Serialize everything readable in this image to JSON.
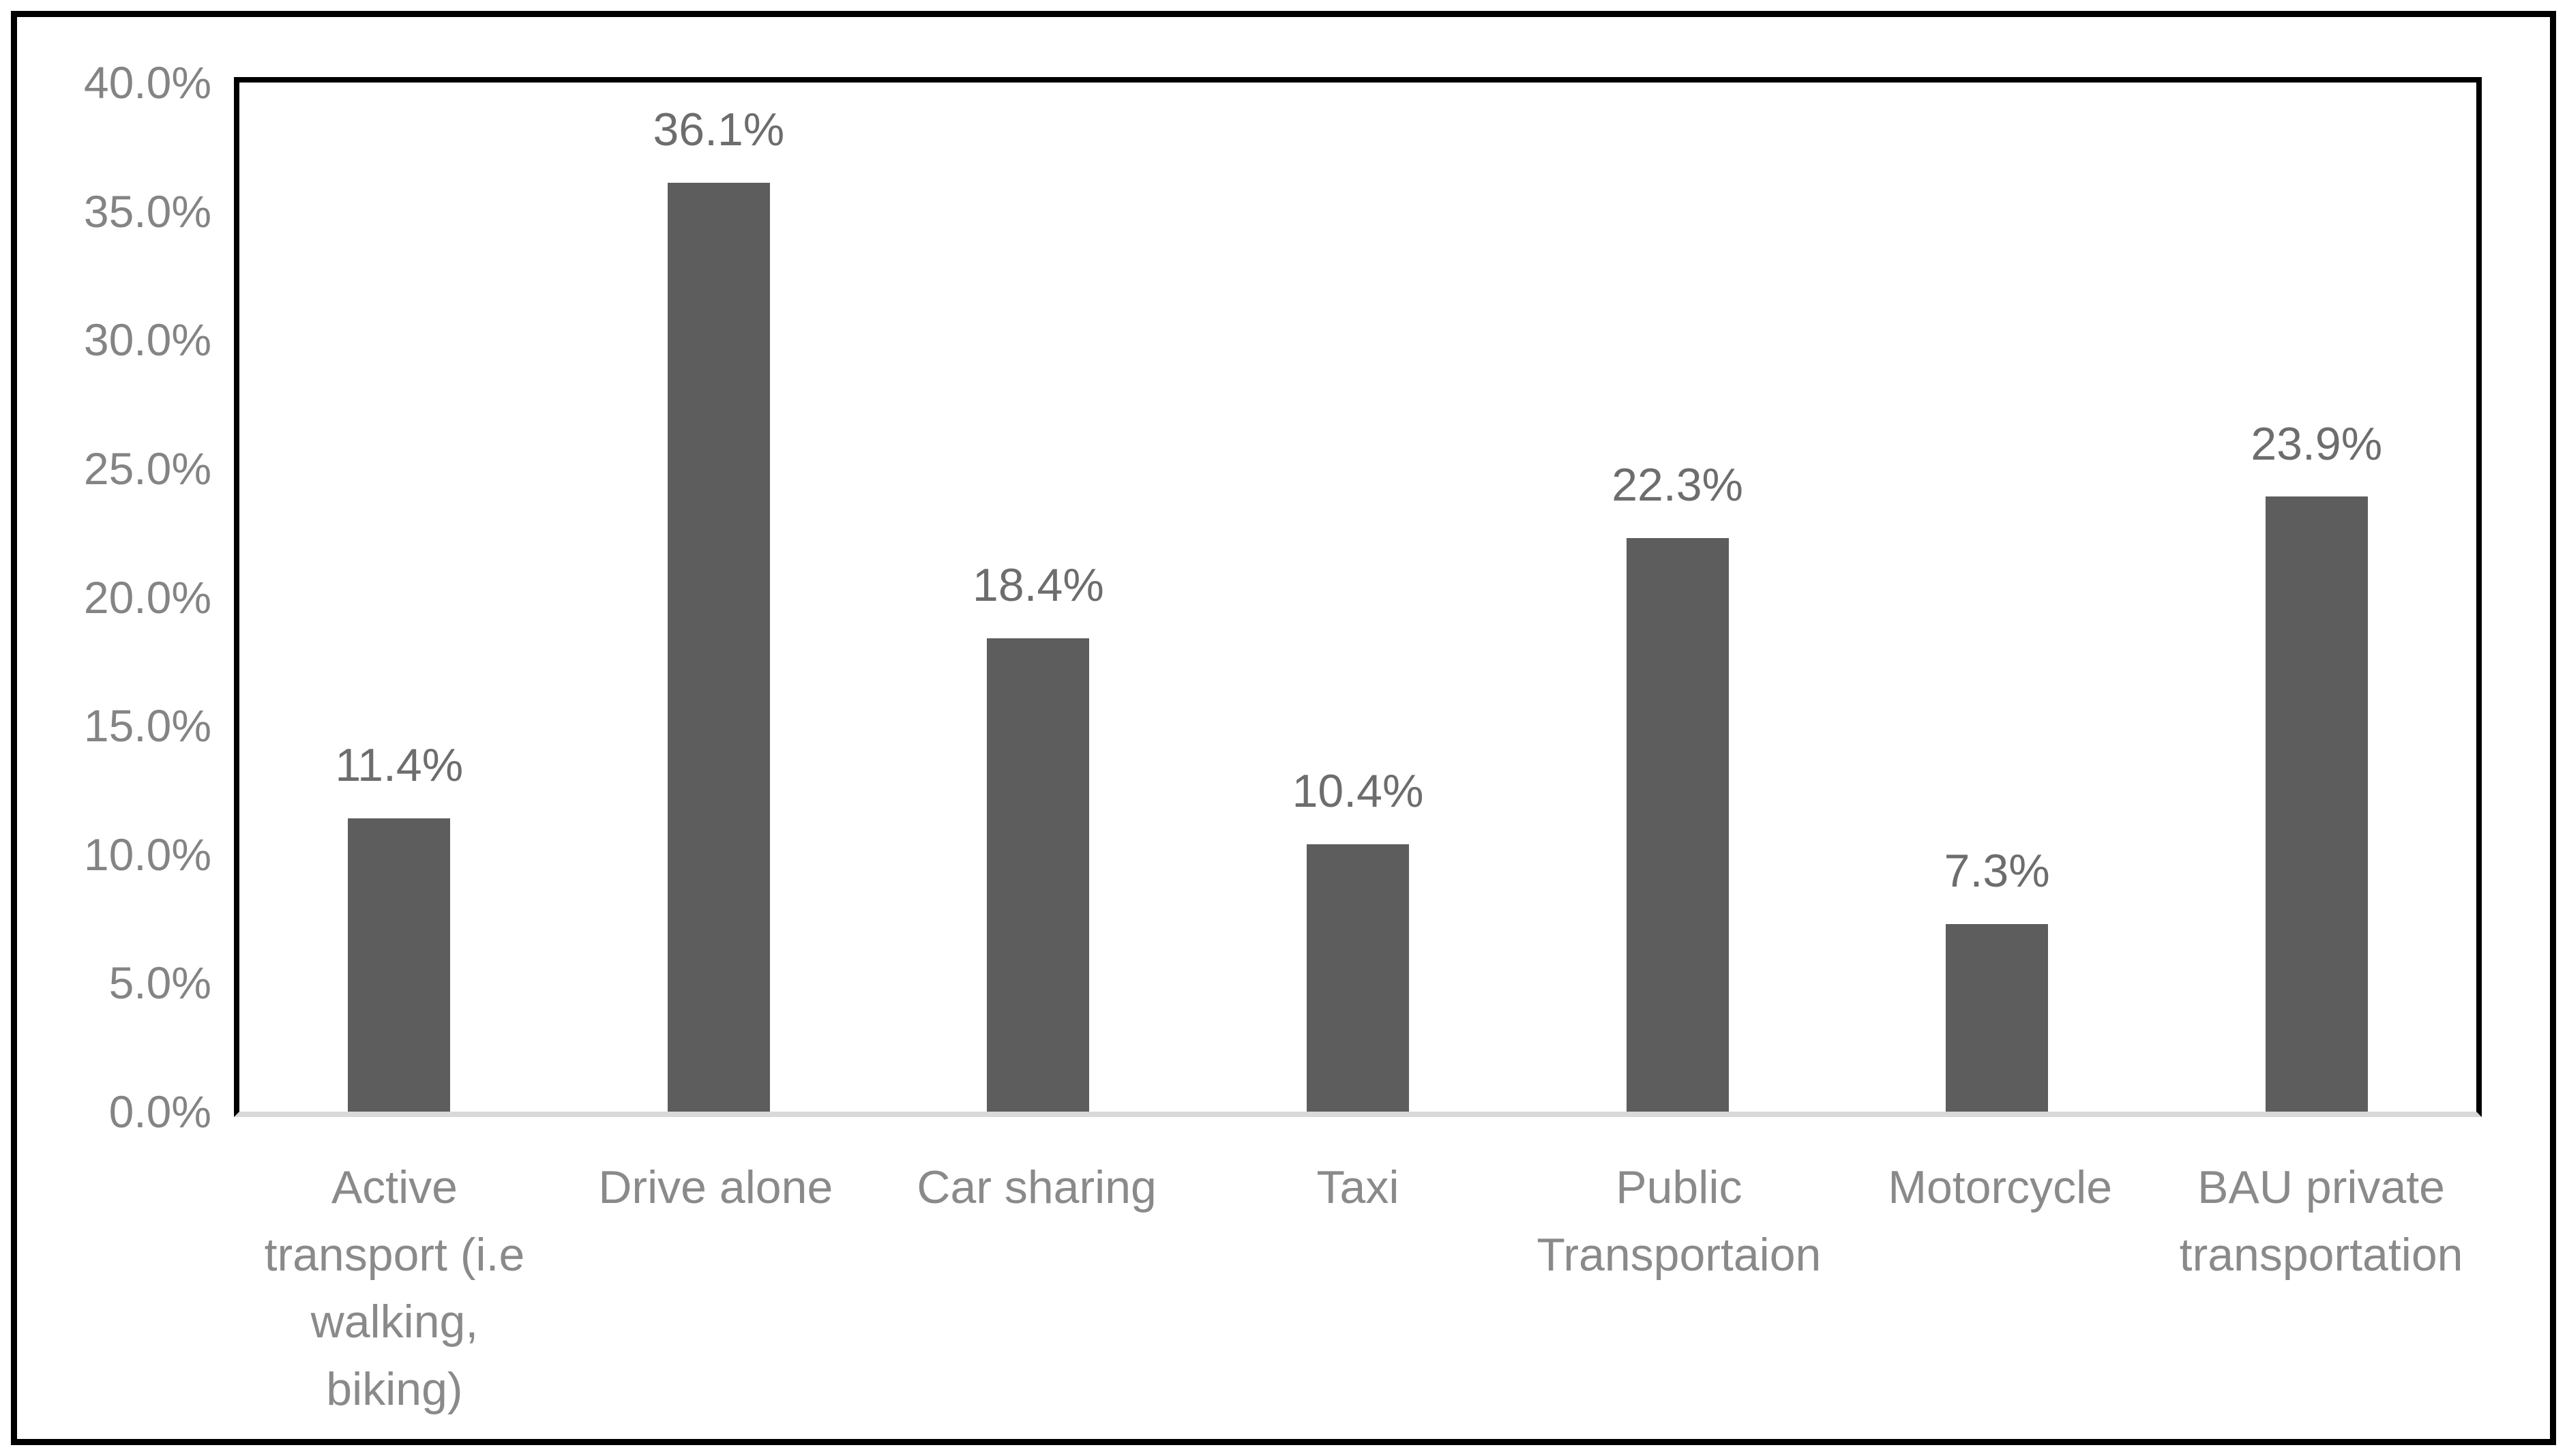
{
  "figure": {
    "background": "#ffffff",
    "outer_border_color": "#000000",
    "plot_border_color": "#000000",
    "axis_line_color": "#d9d9d9",
    "bar_color": "#5d5d5e",
    "tick_label_color": "#848484",
    "data_label_color": "#6d6d6d",
    "category_label_color": "#8a8a8a"
  },
  "chart_data": {
    "type": "bar",
    "title": "",
    "xlabel": "",
    "ylabel": "",
    "categories": [
      "Active transport (i.e walking, biking)",
      "Drive alone",
      "Car sharing",
      "Taxi",
      "Public Transportaion",
      "Motorcycle",
      "BAU private transportation"
    ],
    "category_lines": [
      [
        "Active",
        "transport (i.e",
        "walking,",
        "biking)"
      ],
      [
        "Drive alone"
      ],
      [
        "Car sharing"
      ],
      [
        "Taxi"
      ],
      [
        "Public",
        "Transportaion"
      ],
      [
        "Motorcycle"
      ],
      [
        "BAU private",
        "transportation"
      ]
    ],
    "values": [
      11.4,
      36.1,
      18.4,
      10.4,
      22.3,
      7.3,
      23.9
    ],
    "data_labels": [
      "11.4%",
      "36.1%",
      "18.4%",
      "10.4%",
      "22.3%",
      "7.3%",
      "23.9%"
    ],
    "ylim": [
      0,
      40
    ],
    "y_tick_step": 5,
    "y_ticks": [
      "0.0%",
      "5.0%",
      "10.0%",
      "15.0%",
      "20.0%",
      "25.0%",
      "30.0%",
      "35.0%",
      "40.0%"
    ],
    "grid": false,
    "legend": false
  }
}
